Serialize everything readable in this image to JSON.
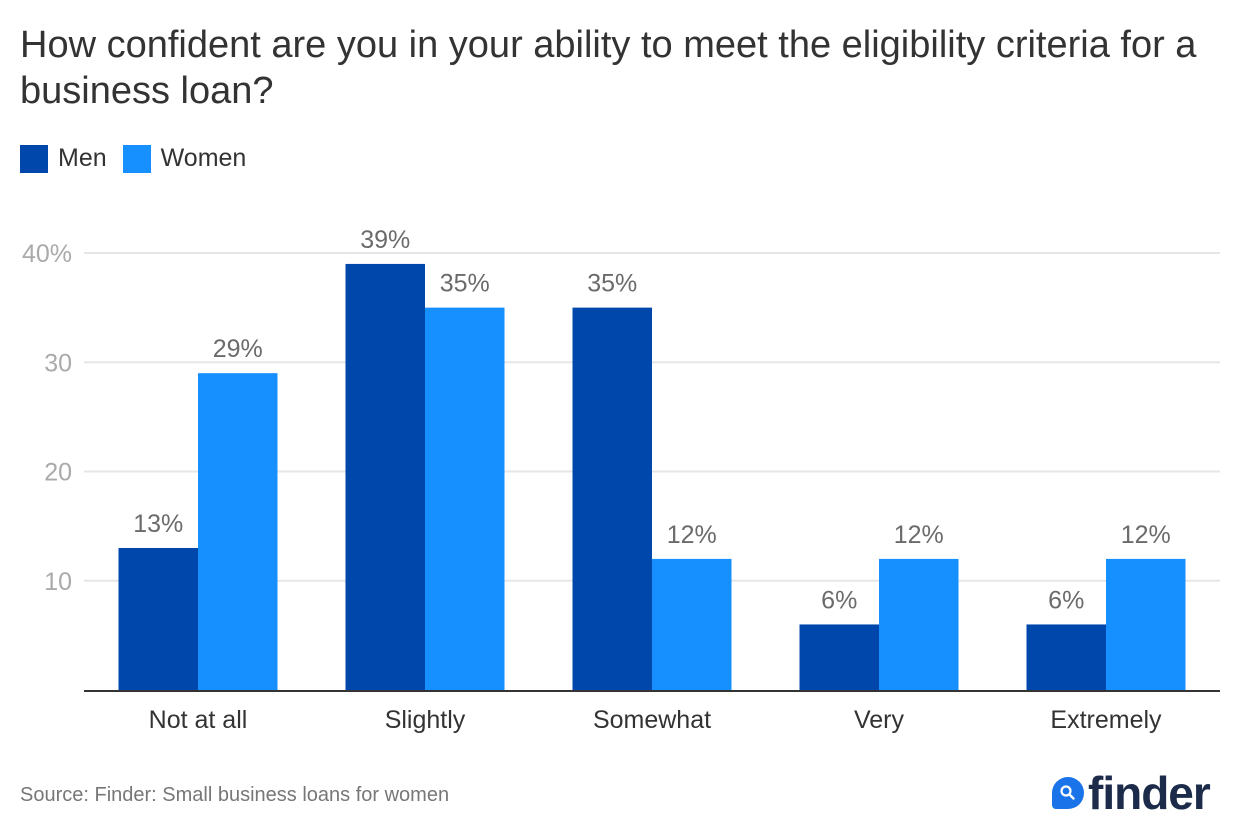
{
  "chart_data": {
    "type": "bar",
    "title": "How confident are you in your ability to meet the eligibility criteria for a business loan?",
    "xlabel": "",
    "ylabel": "",
    "categories": [
      "Not at all",
      "Slightly",
      "Somewhat",
      "Very",
      "Extremely"
    ],
    "series": [
      {
        "name": "Men",
        "color": "#0047ab",
        "values": [
          13,
          39,
          35,
          6,
          6
        ],
        "labels": [
          "13%",
          "39%",
          "35%",
          "6%",
          "6%"
        ]
      },
      {
        "name": "Women",
        "color": "#1690ff",
        "values": [
          29,
          35,
          12,
          12,
          12
        ],
        "labels": [
          "29%",
          "35%",
          "12%",
          "12%",
          "12%"
        ]
      }
    ],
    "ylim": [
      0,
      40
    ],
    "yticks": [
      10,
      20,
      30,
      40
    ],
    "ytick_labels": [
      "10",
      "20",
      "30",
      "40%"
    ],
    "grid": true,
    "legend_position": "top-left"
  },
  "source": "Source: Finder: Small business loans for women",
  "logo": {
    "text": "finder",
    "icon": "magnifier-icon",
    "color": "#1a73e8"
  }
}
